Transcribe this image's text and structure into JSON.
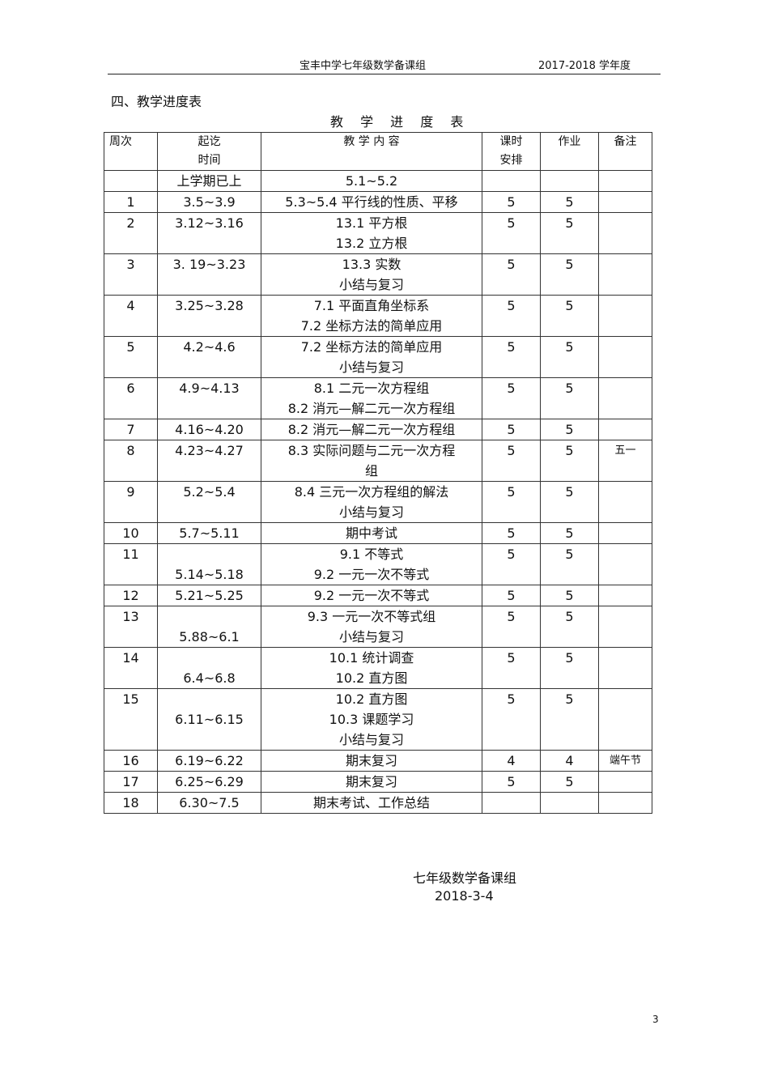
{
  "header": {
    "group": "宝丰中学七年级数学备课组",
    "year": "2017-2018 学年度"
  },
  "section_title": "四、教学进度表",
  "table_title": "教 学 进 度 表",
  "columns": {
    "week": "周次",
    "date": [
      "起讫",
      "时间"
    ],
    "content": "教 学 内 容",
    "hours": [
      "课时",
      "安排"
    ],
    "homework": "作业",
    "note": "备注"
  },
  "rows": [
    {
      "week": "",
      "date": [
        "上学期已上"
      ],
      "content": [
        "5.1~5.2"
      ],
      "hours": "",
      "hw": "",
      "note": ""
    },
    {
      "week": "1",
      "date": [
        "3.5~3.9"
      ],
      "content": [
        "5.3~5.4  平行线的性质、平移"
      ],
      "hours": "5",
      "hw": "5",
      "note": ""
    },
    {
      "week": "2",
      "date": [
        "3.12~3.16"
      ],
      "content": [
        "13.1  平方根",
        "13.2  立方根"
      ],
      "hours": "5",
      "hw": "5",
      "note": ""
    },
    {
      "week": "3",
      "date": [
        "3. 19~3.23"
      ],
      "content": [
        "13.3  实数",
        "小结与复习"
      ],
      "hours": "5",
      "hw": "5",
      "note": ""
    },
    {
      "week": "4",
      "date": [
        "3.25~3.28"
      ],
      "content": [
        "7.1  平面直角坐标系",
        "7.2  坐标方法的简单应用"
      ],
      "hours": "5",
      "hw": "5",
      "note": ""
    },
    {
      "week": "5",
      "date": [
        "4.2~4.6"
      ],
      "content": [
        "7.2  坐标方法的简单应用",
        "小结与复习"
      ],
      "hours": "5",
      "hw": "5",
      "note": ""
    },
    {
      "week": "6",
      "date": [
        "4.9~4.13"
      ],
      "content": [
        "8.1  二元一次方程组",
        "8.2  消元—解二元一次方程组"
      ],
      "hours": "5",
      "hw": "5",
      "note": ""
    },
    {
      "week": "7",
      "date": [
        "4.16~4.20"
      ],
      "content": [
        "8.2  消元—解二元一次方程组"
      ],
      "hours": "5",
      "hw": "5",
      "note": ""
    },
    {
      "week": "8",
      "date": [
        "4.23~4.27"
      ],
      "content": [
        "8.3  实际问题与二元一次方程",
        "组"
      ],
      "hours": "5",
      "hw": "5",
      "note": "五一"
    },
    {
      "week": "9",
      "date": [
        "5.2~5.4"
      ],
      "content": [
        "8.4  三元一次方程组的解法",
        "小结与复习"
      ],
      "hours": "5",
      "hw": "5",
      "note": ""
    },
    {
      "week": "10",
      "date": [
        "5.7~5.11"
      ],
      "content": [
        "期中考试"
      ],
      "hours": "5",
      "hw": "5",
      "note": ""
    },
    {
      "week": "11",
      "date": [
        "",
        "5.14~5.18"
      ],
      "content": [
        "9.1  不等式",
        "9.2  一元一次不等式"
      ],
      "hours": "5",
      "hw": "5",
      "note": ""
    },
    {
      "week": "12",
      "date": [
        "5.21~5.25"
      ],
      "content": [
        "9.2  一元一次不等式"
      ],
      "hours": "5",
      "hw": "5",
      "note": ""
    },
    {
      "week": "13",
      "date": [
        "",
        "5.88~6.1"
      ],
      "content": [
        "9.3  一元一次不等式组",
        "小结与复习"
      ],
      "hours": "5",
      "hw": "5",
      "note": ""
    },
    {
      "week": "14",
      "date": [
        "",
        "6.4~6.8"
      ],
      "content": [
        "10.1  统计调查",
        "10.2  直方图"
      ],
      "hours": "5",
      "hw": "5",
      "note": ""
    },
    {
      "week": "15",
      "date": [
        "",
        "6.11~6.15"
      ],
      "content": [
        "10.2  直方图",
        "10.3  课题学习",
        "小结与复习"
      ],
      "hours": "5",
      "hw": "5",
      "note": ""
    },
    {
      "week": "16",
      "date": [
        "6.19~6.22"
      ],
      "content": [
        "期末复习"
      ],
      "hours": "4",
      "hw": "4",
      "note": "端午节"
    },
    {
      "week": "17",
      "date": [
        "6.25~6.29"
      ],
      "content": [
        "期末复习"
      ],
      "hours": "5",
      "hw": "5",
      "note": ""
    },
    {
      "week": "18",
      "date": [
        "6.30~7.5"
      ],
      "content": [
        "期末考试、工作总结"
      ],
      "hours": "",
      "hw": "",
      "note": ""
    }
  ],
  "signature": {
    "group": "七年级数学备课组",
    "date": "2018-3-4"
  },
  "page_number": "3"
}
